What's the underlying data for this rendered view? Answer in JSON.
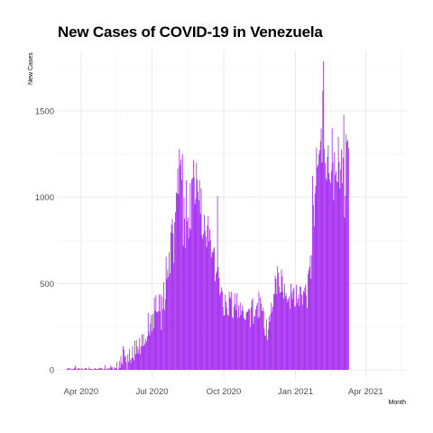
{
  "chart_data": {
    "type": "bar",
    "title": "New Cases of COVID-19 in Venezuela",
    "xlabel": "Month",
    "ylabel": "New Cases",
    "bar_color": "#a020f0",
    "grid": true,
    "ylim": [
      0,
      1850
    ],
    "xlim": [
      "2020-03-02",
      "2021-05-25"
    ],
    "x_ticks": [
      {
        "date": "2020-04-01",
        "label": "Apr 2020"
      },
      {
        "date": "2020-07-01",
        "label": "Jul 2020"
      },
      {
        "date": "2020-10-01",
        "label": "Oct 2020"
      },
      {
        "date": "2021-01-01",
        "label": "Jan 2021"
      },
      {
        "date": "2021-04-01",
        "label": "Apr 2021"
      }
    ],
    "y_ticks": [
      0,
      500,
      1000,
      1500
    ],
    "start_date": "2020-03-13",
    "values": [
      2,
      8,
      3,
      10,
      11,
      0,
      3,
      6,
      4,
      6,
      7,
      15,
      26,
      0,
      4,
      9,
      8,
      9,
      2,
      3,
      10,
      6,
      1,
      3,
      9,
      12,
      9,
      0,
      0,
      14,
      5,
      6,
      5,
      6,
      1,
      0,
      7,
      11,
      5,
      4,
      6,
      4,
      10,
      7,
      12,
      10,
      0,
      1,
      7,
      4,
      29,
      4,
      3,
      10,
      7,
      2,
      11,
      25,
      14,
      15,
      0,
      5,
      17,
      10,
      9,
      44,
      0,
      7,
      51,
      11,
      80,
      40,
      31,
      137,
      117,
      75,
      82,
      45,
      0,
      89,
      46,
      121,
      59,
      40,
      68,
      138,
      71,
      56,
      169,
      92,
      173,
      137,
      94,
      121,
      184,
      91,
      137,
      206,
      137,
      207,
      140,
      154,
      180,
      166,
      195,
      328,
      222,
      200,
      268,
      317,
      222,
      323,
      241,
      418,
      341,
      433,
      336,
      332,
      340,
      437,
      339,
      437,
      232,
      424,
      353,
      509,
      348,
      410,
      656,
      526,
      581,
      539,
      682,
      558,
      795,
      840,
      875,
      790,
      620,
      856,
      913,
      1028,
      1022,
      1166,
      1018,
      1280,
      1185,
      1219,
      1103,
      1249,
      720,
      998,
      876,
      707,
      1098,
      859,
      882,
      764,
      822,
      1082,
      813,
      1105,
      1111,
      1215,
      1117,
      961,
      990,
      1199,
      1101,
      1033,
      982,
      1097,
      903,
      1052,
      780,
      760,
      789,
      898,
      808,
      773,
      712,
      836,
      890,
      745,
      813,
      752,
      652,
      687,
      679,
      700,
      711,
      514,
      559,
      571,
      1006,
      596,
      532,
      433,
      447,
      478,
      456,
      365,
      314,
      317,
      437,
      396,
      358,
      320,
      312,
      452,
      421,
      411,
      453,
      307,
      299,
      366,
      443,
      380,
      346,
      444,
      303,
      373,
      305,
      391,
      317,
      343,
      373,
      343,
      299,
      293,
      289,
      332,
      338,
      338,
      353,
      352,
      248,
      362,
      403,
      416,
      267,
      311,
      311,
      351,
      372,
      388,
      300,
      453,
      307,
      420,
      384,
      341,
      362,
      342,
      238,
      201,
      196,
      292,
      173,
      234,
      310,
      277,
      324,
      389,
      340,
      365,
      442,
      437,
      547,
      528,
      439,
      600,
      562,
      484,
      446,
      451,
      582,
      541,
      453,
      414,
      498,
      428,
      445,
      411,
      391,
      409,
      424,
      355,
      498,
      447,
      410,
      462,
      477,
      367,
      368,
      493,
      386,
      413,
      437,
      370,
      484,
      481,
      434,
      378,
      458,
      447,
      477,
      495,
      431,
      359,
      556,
      578,
      598,
      662,
      528,
      665,
      1123,
      956,
      831,
      1021,
      1065,
      1287,
      1174,
      1187,
      1250,
      1272,
      1326,
      1399,
      1202,
      1617,
      1787,
      1281,
      1199,
      1114,
      1099,
      1235,
      1301,
      1140,
      1103,
      1084,
      1153,
      1400,
      1200,
      982,
      1260,
      1130,
      1150,
      1092,
      1085,
      1350,
      1206,
      1050,
      1163,
      1277,
      1082,
      1229,
      1477,
      882,
      1010,
      1366,
      1321,
      1333,
      1286
    ]
  }
}
